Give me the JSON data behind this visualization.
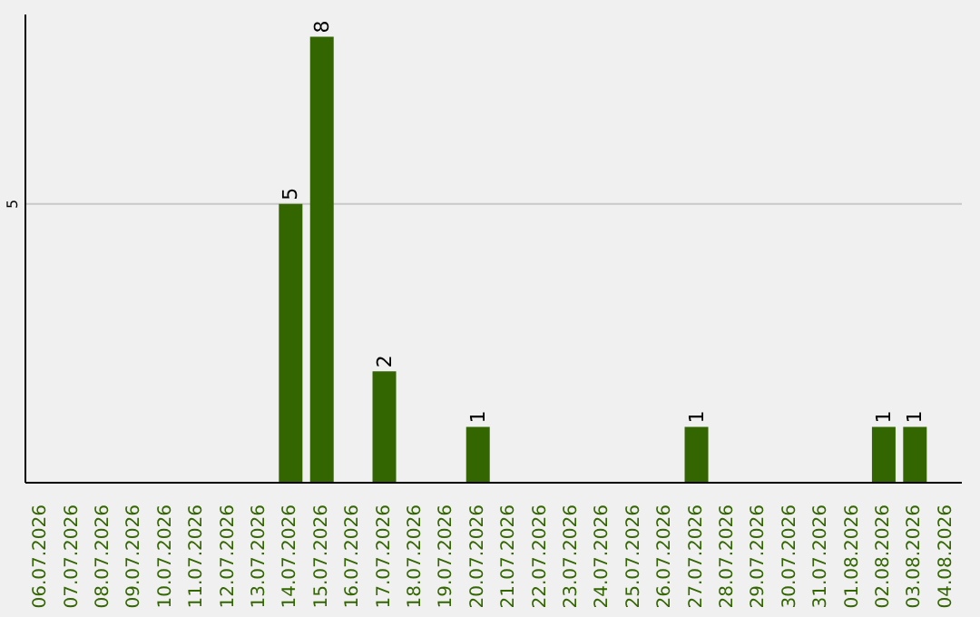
{
  "chart_data": {
    "type": "bar",
    "categories": [
      "06.07.2026",
      "07.07.2026",
      "08.07.2026",
      "09.07.2026",
      "10.07.2026",
      "11.07.2026",
      "12.07.2026",
      "13.07.2026",
      "14.07.2026",
      "15.07.2026",
      "16.07.2026",
      "17.07.2026",
      "18.07.2026",
      "19.07.2026",
      "20.07.2026",
      "21.07.2026",
      "22.07.2026",
      "23.07.2026",
      "24.07.2026",
      "25.07.2026",
      "26.07.2026",
      "27.07.2026",
      "28.07.2026",
      "29.07.2026",
      "30.07.2026",
      "31.07.2026",
      "01.08.2026",
      "02.08.2026",
      "03.08.2026",
      "04.08.2026"
    ],
    "values": [
      0,
      0,
      0,
      0,
      0,
      0,
      0,
      0,
      5,
      8,
      0,
      2,
      0,
      0,
      1,
      0,
      0,
      0,
      0,
      0,
      0,
      1,
      0,
      0,
      0,
      0,
      0,
      1,
      1,
      0
    ],
    "value_labels": [
      null,
      null,
      null,
      null,
      null,
      null,
      null,
      null,
      "5",
      "8",
      null,
      "2",
      null,
      null,
      "1",
      null,
      null,
      null,
      null,
      null,
      null,
      "1",
      null,
      null,
      null,
      null,
      null,
      "1",
      "1",
      null
    ],
    "color": "#336600",
    "ylim": [
      0,
      8.4
    ],
    "yticks": [
      5
    ],
    "grid": "y"
  }
}
